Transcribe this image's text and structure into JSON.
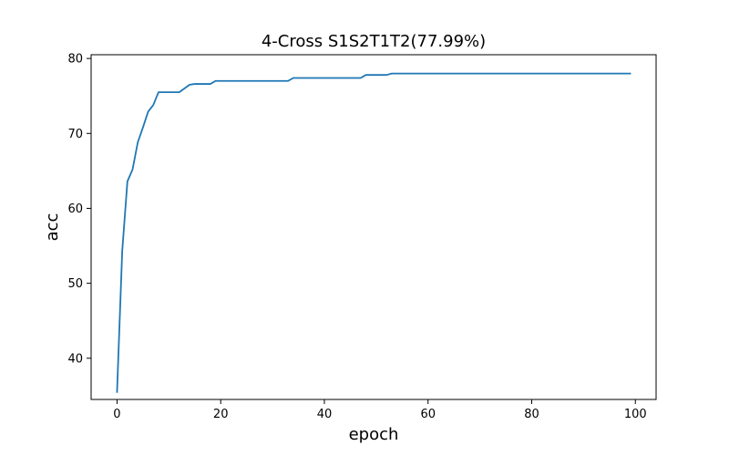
{
  "chart_data": {
    "type": "line",
    "title": "4-Cross S1S2T1T2(77.99%)",
    "xlabel": "epoch",
    "ylabel": "acc",
    "xlim": [
      -5,
      104
    ],
    "ylim": [
      34.5,
      80.5
    ],
    "xticks": [
      0,
      20,
      40,
      60,
      80,
      100
    ],
    "yticks": [
      40,
      50,
      60,
      70,
      80
    ],
    "grid": false,
    "line_color": "#1f77b4",
    "series": [
      {
        "x": [
          0,
          1,
          2,
          3,
          4,
          5,
          6,
          7,
          8,
          9,
          10,
          11,
          12,
          13,
          14,
          15,
          16,
          17,
          18,
          19,
          20,
          21,
          22,
          23,
          24,
          25,
          26,
          27,
          28,
          29,
          30,
          31,
          32,
          33,
          34,
          35,
          36,
          37,
          38,
          39,
          40,
          41,
          42,
          43,
          44,
          45,
          46,
          47,
          48,
          49,
          50,
          51,
          52,
          53,
          54,
          55,
          56,
          57,
          58,
          59,
          60,
          61,
          62,
          63,
          64,
          65,
          66,
          67,
          68,
          69,
          70,
          71,
          72,
          73,
          74,
          75,
          76,
          77,
          78,
          79,
          80,
          81,
          82,
          83,
          84,
          85,
          86,
          87,
          88,
          89,
          90,
          91,
          92,
          93,
          94,
          95,
          96,
          97,
          98,
          99
        ],
        "y": [
          35.5,
          54.3,
          63.6,
          65.2,
          68.8,
          70.8,
          72.9,
          73.8,
          75.5,
          75.5,
          75.5,
          75.5,
          75.5,
          76.0,
          76.5,
          76.6,
          76.6,
          76.6,
          76.6,
          77.0,
          77.0,
          77.0,
          77.0,
          77.0,
          77.0,
          77.0,
          77.0,
          77.0,
          77.0,
          77.0,
          77.0,
          77.0,
          77.0,
          77.0,
          77.4,
          77.4,
          77.4,
          77.4,
          77.4,
          77.4,
          77.4,
          77.4,
          77.4,
          77.4,
          77.4,
          77.4,
          77.4,
          77.4,
          77.8,
          77.8,
          77.8,
          77.8,
          77.8,
          77.99,
          77.99,
          77.99,
          77.99,
          77.99,
          77.99,
          77.99,
          77.99,
          77.99,
          77.99,
          77.99,
          77.99,
          77.99,
          77.99,
          77.99,
          77.99,
          77.99,
          77.99,
          77.99,
          77.99,
          77.99,
          77.99,
          77.99,
          77.99,
          77.99,
          77.99,
          77.99,
          77.99,
          77.99,
          77.99,
          77.99,
          77.99,
          77.99,
          77.99,
          77.99,
          77.99,
          77.99,
          77.99,
          77.99,
          77.99,
          77.99,
          77.99,
          77.99,
          77.99,
          77.99,
          77.99,
          77.99
        ]
      }
    ]
  }
}
